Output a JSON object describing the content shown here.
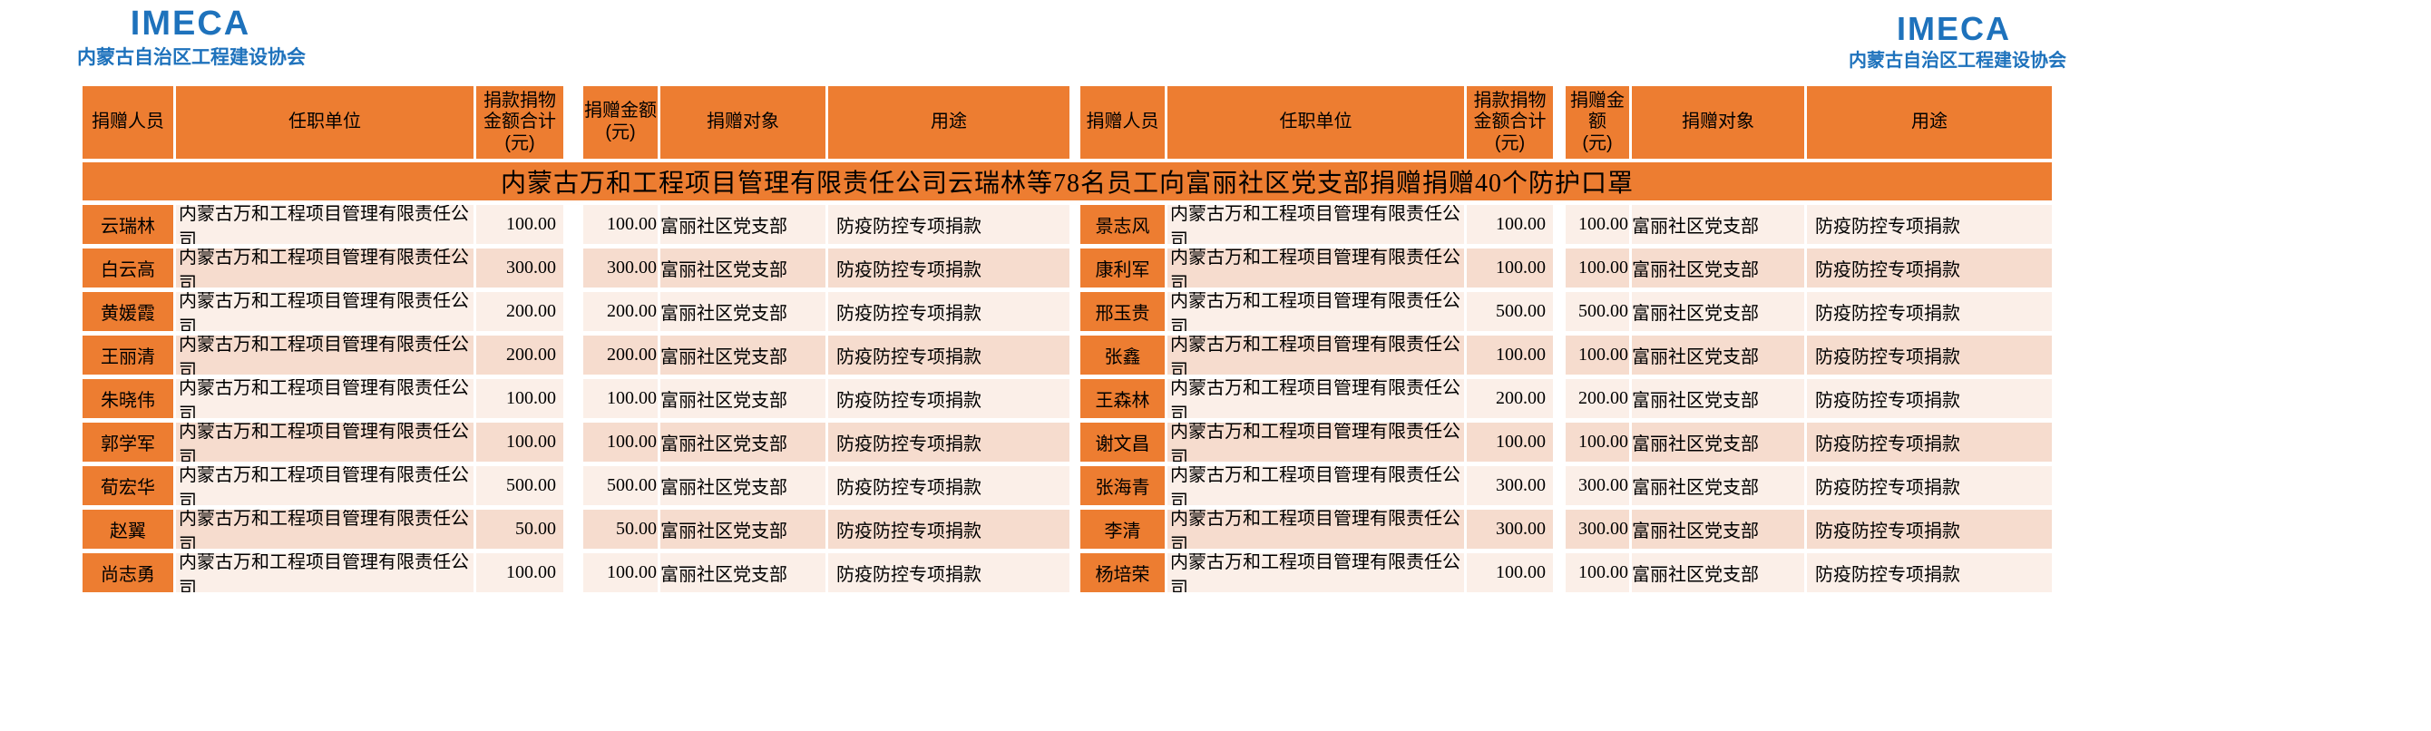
{
  "page": {
    "logo_left": {
      "acronym": "IMECA",
      "org_name": "内蒙古自治区工程建设协会"
    },
    "logo_right": {
      "acronym": "IMECA",
      "org_name": "内蒙古自治区工程建设协会"
    },
    "banner": "内蒙古万和工程项目管理有限责任公司云瑞林等78名员工向富丽社区党支部捐赠捐赠40个防护口罩"
  },
  "colors": {
    "accent_orange": "#ed7d31",
    "row_light": "#fbefe8",
    "row_pink": "#f6dcce",
    "logo_blue": "#1e72bc",
    "text_black": "#000000"
  },
  "table": {
    "headers_left": {
      "donor": "捐赠人员",
      "unit": "任职单位",
      "total": "捐款捐物\n金额合计\n(元)",
      "amount": "捐赠金额\n(元)",
      "target": "捐赠对象",
      "purpose": "用途"
    },
    "headers_right": {
      "donor": "捐赠人员",
      "unit": "任职单位",
      "total": "捐款捐物\n金额合计\n(元)",
      "amount": "捐赠金\n额\n(元)",
      "target": "捐赠对象",
      "purpose": "用途"
    },
    "rows_left": [
      {
        "name": "云瑞林",
        "unit": "内蒙古万和工程项目管理有限责任公司",
        "total": "100.00",
        "amount": "100.00",
        "target": "富丽社区党支部",
        "purpose": "防疫防控专项捐款"
      },
      {
        "name": "白云高",
        "unit": "内蒙古万和工程项目管理有限责任公司",
        "total": "300.00",
        "amount": "300.00",
        "target": "富丽社区党支部",
        "purpose": "防疫防控专项捐款"
      },
      {
        "name": "黄媛霞",
        "unit": "内蒙古万和工程项目管理有限责任公司",
        "total": "200.00",
        "amount": "200.00",
        "target": "富丽社区党支部",
        "purpose": "防疫防控专项捐款"
      },
      {
        "name": "王丽清",
        "unit": "内蒙古万和工程项目管理有限责任公司",
        "total": "200.00",
        "amount": "200.00",
        "target": "富丽社区党支部",
        "purpose": "防疫防控专项捐款"
      },
      {
        "name": "朱晓伟",
        "unit": "内蒙古万和工程项目管理有限责任公司",
        "total": "100.00",
        "amount": "100.00",
        "target": "富丽社区党支部",
        "purpose": "防疫防控专项捐款"
      },
      {
        "name": "郭学军",
        "unit": "内蒙古万和工程项目管理有限责任公司",
        "total": "100.00",
        "amount": "100.00",
        "target": "富丽社区党支部",
        "purpose": "防疫防控专项捐款"
      },
      {
        "name": "荀宏华",
        "unit": "内蒙古万和工程项目管理有限责任公司",
        "total": "500.00",
        "amount": "500.00",
        "target": "富丽社区党支部",
        "purpose": "防疫防控专项捐款"
      },
      {
        "name": "赵翼",
        "unit": "内蒙古万和工程项目管理有限责任公司",
        "total": "50.00",
        "amount": "50.00",
        "target": "富丽社区党支部",
        "purpose": "防疫防控专项捐款"
      },
      {
        "name": "尚志勇",
        "unit": "内蒙古万和工程项目管理有限责任公司",
        "total": "100.00",
        "amount": "100.00",
        "target": "富丽社区党支部",
        "purpose": "防疫防控专项捐款"
      }
    ],
    "rows_right": [
      {
        "name": "景志风",
        "unit": "内蒙古万和工程项目管理有限责任公司",
        "total": "100.00",
        "amount": "100.00",
        "target": "富丽社区党支部",
        "purpose": "防疫防控专项捐款"
      },
      {
        "name": "康利军",
        "unit": "内蒙古万和工程项目管理有限责任公司",
        "total": "100.00",
        "amount": "100.00",
        "target": "富丽社区党支部",
        "purpose": "防疫防控专项捐款"
      },
      {
        "name": "邢玉贵",
        "unit": "内蒙古万和工程项目管理有限责任公司",
        "total": "500.00",
        "amount": "500.00",
        "target": "富丽社区党支部",
        "purpose": "防疫防控专项捐款"
      },
      {
        "name": "张鑫",
        "unit": "内蒙古万和工程项目管理有限责任公司",
        "total": "100.00",
        "amount": "100.00",
        "target": "富丽社区党支部",
        "purpose": "防疫防控专项捐款"
      },
      {
        "name": "王森林",
        "unit": "内蒙古万和工程项目管理有限责任公司",
        "total": "200.00",
        "amount": "200.00",
        "target": "富丽社区党支部",
        "purpose": "防疫防控专项捐款"
      },
      {
        "name": "谢文昌",
        "unit": "内蒙古万和工程项目管理有限责任公司",
        "total": "100.00",
        "amount": "100.00",
        "target": "富丽社区党支部",
        "purpose": "防疫防控专项捐款"
      },
      {
        "name": "张海青",
        "unit": "内蒙古万和工程项目管理有限责任公司",
        "total": "300.00",
        "amount": "300.00",
        "target": "富丽社区党支部",
        "purpose": "防疫防控专项捐款"
      },
      {
        "name": "李清",
        "unit": "内蒙古万和工程项目管理有限责任公司",
        "total": "300.00",
        "amount": "300.00",
        "target": "富丽社区党支部",
        "purpose": "防疫防控专项捐款"
      },
      {
        "name": "杨培荣",
        "unit": "内蒙古万和工程项目管理有限责任公司",
        "total": "100.00",
        "amount": "100.00",
        "target": "富丽社区党支部",
        "purpose": "防疫防控专项捐款"
      }
    ]
  }
}
